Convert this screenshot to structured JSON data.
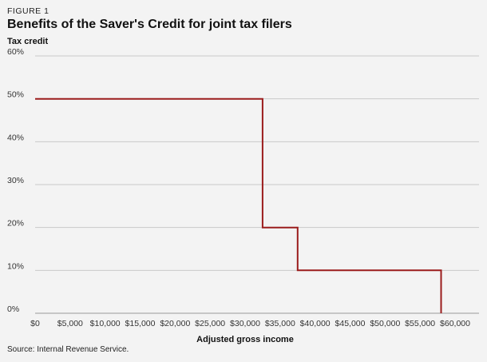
{
  "figure_label": "FIGURE 1",
  "chart_data": {
    "type": "line",
    "title": "Benefits of the Saver's Credit for joint tax filers",
    "ylabel": "Tax credit",
    "xlabel": "Adjusted gross income",
    "source": "Source: Internal Revenue Service.",
    "xlim": [
      0,
      60000
    ],
    "ylim": [
      0,
      60
    ],
    "grid": true,
    "x_ticks": [
      {
        "value": 0,
        "label": "$0"
      },
      {
        "value": 5000,
        "label": "$5,000"
      },
      {
        "value": 10000,
        "label": "$10,000"
      },
      {
        "value": 15000,
        "label": "$15,000"
      },
      {
        "value": 20000,
        "label": "$20,000"
      },
      {
        "value": 25000,
        "label": "$25,000"
      },
      {
        "value": 30000,
        "label": "$30,000"
      },
      {
        "value": 35000,
        "label": "$35,000"
      },
      {
        "value": 40000,
        "label": "$40,000"
      },
      {
        "value": 45000,
        "label": "$45,000"
      },
      {
        "value": 50000,
        "label": "$50,000"
      },
      {
        "value": 55000,
        "label": "$55,000"
      },
      {
        "value": 60000,
        "label": "$60,000"
      }
    ],
    "y_ticks": [
      {
        "value": 0,
        "label": "0%"
      },
      {
        "value": 10,
        "label": "10%"
      },
      {
        "value": 20,
        "label": "20%"
      },
      {
        "value": 30,
        "label": "30%"
      },
      {
        "value": 40,
        "label": "40%"
      },
      {
        "value": 50,
        "label": "50%"
      },
      {
        "value": 60,
        "label": "60%"
      }
    ],
    "series": [
      {
        "color": "#9b1c1c",
        "points": [
          [
            0,
            50
          ],
          [
            32500,
            50
          ],
          [
            32500,
            20
          ],
          [
            37500,
            20
          ],
          [
            37500,
            10
          ],
          [
            58000,
            10
          ],
          [
            58000,
            0
          ]
        ]
      }
    ]
  }
}
